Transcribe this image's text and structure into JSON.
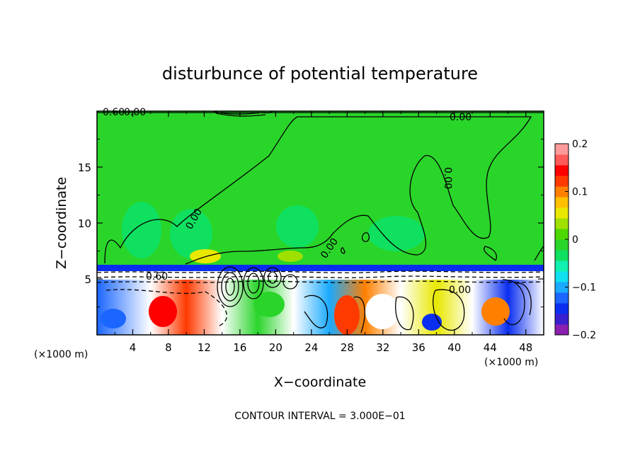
{
  "chart_data": {
    "type": "heatmap",
    "title": "disturbunce of potential temperature",
    "xlabel": "X−coordinate",
    "ylabel": "Z−coordinate",
    "x_unit": "(×1000 m)",
    "y_unit": "(×1000 m)",
    "x_range": [
      0,
      50
    ],
    "y_range": [
      0,
      20
    ],
    "x_ticks": [
      4,
      8,
      12,
      16,
      20,
      24,
      28,
      32,
      36,
      40,
      44,
      48
    ],
    "y_ticks": [
      5,
      10,
      15
    ],
    "colorbar": {
      "range": [
        -0.2,
        0.2
      ],
      "ticks": [
        0.2,
        0.1,
        0,
        -0.1,
        -0.2
      ],
      "tick_labels": [
        "0.2",
        "0.1",
        "0",
        "−0.1",
        "−0.2"
      ],
      "colors": [
        "#8a1fb0",
        "#3a1fd0",
        "#0a2ef0",
        "#1a66ff",
        "#1aaaff",
        "#10e0f0",
        "#10f0b0",
        "#10e060",
        "#2ad52a",
        "#4cd800",
        "#a0e000",
        "#e8e800",
        "#ffc000",
        "#ff8000",
        "#ff3a00",
        "#ff0000",
        "#ff5a5a",
        "#ff9a9a"
      ]
    },
    "contour_labels": [
      "0.60",
      "0.00",
      "0.00",
      "0.00",
      "0.00",
      "0.00",
      "0.60",
      "0.00"
    ],
    "footnote": "CONTOUR INTERVAL = 3.000E−01",
    "grid": false
  }
}
